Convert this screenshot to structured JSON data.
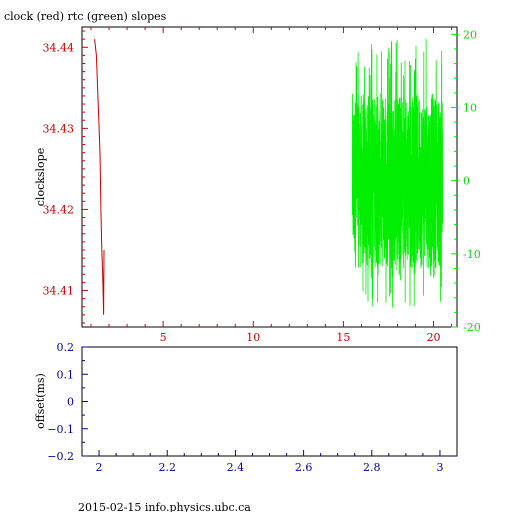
{
  "colors": {
    "clock": "#cc0000",
    "rtc": "#00ee00",
    "offset_axis": "#0000aa",
    "frame": "#000000"
  },
  "footer": "2015-02-15 info.physics.ubc.ca",
  "chart_data": [
    {
      "type": "line",
      "title": "clock (red) rtc (green) slopes",
      "ylabel": "clockslope",
      "xlim": [
        0.5,
        21.3
      ],
      "ylim": [
        34.4055,
        34.4425
      ],
      "y2lim": [
        -20.0,
        21.0
      ],
      "x_ticks": [
        5,
        10,
        15,
        20
      ],
      "y_ticks": [
        34.41,
        34.42,
        34.43,
        34.44
      ],
      "y2_ticks": [
        -20,
        -10,
        0,
        10,
        20
      ],
      "grid": false,
      "series": [
        {
          "points": [
            [
              1.2,
              34.441
            ],
            [
              1.3,
              34.439
            ],
            [
              1.4,
              34.433
            ],
            [
              1.5,
              34.427
            ],
            [
              1.55,
              34.42
            ],
            [
              1.6,
              34.415
            ],
            [
              1.65,
              34.412
            ],
            [
              1.7,
              34.407
            ],
            [
              1.72,
              34.415
            ]
          ]
        },
        {
          "x_range": [
            15.5,
            20.5
          ],
          "y_range": [
            -17.5,
            19.5
          ],
          "typical_range": [
            -12,
            12
          ]
        }
      ]
    },
    {
      "type": "line",
      "ylabel": "offset(ms)",
      "xlim": [
        1.95,
        3.05
      ],
      "ylim": [
        -0.2,
        0.2
      ],
      "x_ticks": [
        "2",
        "2.2",
        "2.4",
        "2.6",
        "2.8",
        "3"
      ],
      "y_ticks": [
        "0.2",
        "0.1",
        "0",
        "−0.1",
        "−0.2"
      ],
      "grid": false
    }
  ]
}
